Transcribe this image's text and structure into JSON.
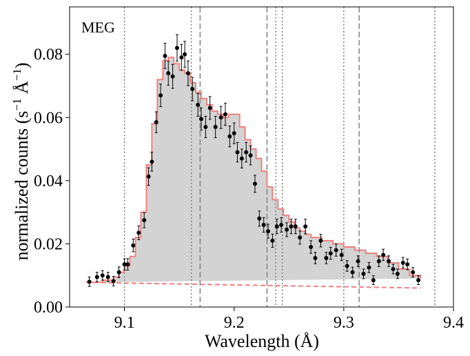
{
  "chart_data": {
    "type": "line",
    "title": "",
    "annotation": "MEG",
    "xlabel": "Wavelength (Å)",
    "ylabel_parts": {
      "pre": "normalized counts (s",
      "sup1": "−1",
      "mid": " Å",
      "sup2": "−1",
      "post": ")"
    },
    "xlim": [
      9.05,
      9.4
    ],
    "ylim": [
      0.0,
      0.095
    ],
    "xticks": [
      9.1,
      9.2,
      9.3,
      9.4
    ],
    "xtick_labels": [
      "9.1",
      "9.2",
      "9.3",
      "9.4"
    ],
    "yticks": [
      0.0,
      0.02,
      0.04,
      0.06,
      0.08
    ],
    "ytick_labels": [
      "0.00",
      "0.02",
      "0.04",
      "0.06",
      "0.08"
    ],
    "colors": {
      "model": "#f08080",
      "fill": "#d3d3d3",
      "data": "#000000",
      "reference": "#808080"
    },
    "continuum": {
      "x": [
        9.065,
        9.37
      ],
      "y": [
        0.0078,
        0.006
      ]
    },
    "dashed_lines_x": [
      9.169,
      9.23,
      9.314
    ],
    "dotted_lines_x": [
      9.1,
      9.161,
      9.238,
      9.244,
      9.3,
      9.383
    ],
    "model_step": {
      "edges": [
        9.065,
        9.08,
        9.09,
        9.095,
        9.1,
        9.105,
        9.11,
        9.115,
        9.12,
        9.125,
        9.13,
        9.135,
        9.14,
        9.145,
        9.15,
        9.155,
        9.16,
        9.165,
        9.17,
        9.175,
        9.18,
        9.185,
        9.19,
        9.195,
        9.2,
        9.205,
        9.21,
        9.215,
        9.22,
        9.225,
        9.23,
        9.235,
        9.24,
        9.245,
        9.25,
        9.255,
        9.26,
        9.265,
        9.27,
        9.28,
        9.29,
        9.3,
        9.31,
        9.32,
        9.33,
        9.34,
        9.35,
        9.36,
        9.37
      ],
      "values": [
        0.0078,
        0.0085,
        0.0095,
        0.011,
        0.013,
        0.016,
        0.022,
        0.03,
        0.045,
        0.058,
        0.072,
        0.078,
        0.079,
        0.077,
        0.075,
        0.074,
        0.071,
        0.068,
        0.066,
        0.064,
        0.062,
        0.061,
        0.06,
        0.061,
        0.061,
        0.057,
        0.053,
        0.05,
        0.047,
        0.043,
        0.038,
        0.034,
        0.031,
        0.029,
        0.027,
        0.025,
        0.024,
        0.023,
        0.022,
        0.021,
        0.02,
        0.019,
        0.018,
        0.017,
        0.016,
        0.014,
        0.012,
        0.01,
        0.009
      ]
    },
    "data_points": {
      "x": [
        9.068,
        9.075,
        9.08,
        9.085,
        9.09,
        9.095,
        9.1,
        9.103,
        9.108,
        9.113,
        9.118,
        9.122,
        9.125,
        9.129,
        9.133,
        9.137,
        9.14,
        9.144,
        9.148,
        9.152,
        9.155,
        9.158,
        9.162,
        9.167,
        9.17,
        9.174,
        9.178,
        9.183,
        9.188,
        9.192,
        9.196,
        9.2,
        9.203,
        9.207,
        9.211,
        9.215,
        9.219,
        9.223,
        9.227,
        9.231,
        9.235,
        9.239,
        9.243,
        9.248,
        9.252,
        9.256,
        9.26,
        9.265,
        9.27,
        9.274,
        9.279,
        9.284,
        9.288,
        9.293,
        9.298,
        9.303,
        9.308,
        9.313,
        9.318,
        9.323,
        9.327,
        9.332,
        9.336,
        9.341,
        9.345,
        9.349,
        9.354,
        9.358,
        9.363,
        9.368
      ],
      "y": [
        0.008,
        0.0095,
        0.01,
        0.0095,
        0.0082,
        0.011,
        0.0135,
        0.0135,
        0.0195,
        0.0235,
        0.0275,
        0.0413,
        0.046,
        0.0585,
        0.067,
        0.0795,
        0.074,
        0.073,
        0.082,
        0.079,
        0.08,
        0.074,
        0.069,
        0.064,
        0.0595,
        0.057,
        0.063,
        0.057,
        0.06,
        0.061,
        0.054,
        0.055,
        0.049,
        0.047,
        0.049,
        0.048,
        0.039,
        0.028,
        0.026,
        0.024,
        0.021,
        0.0255,
        0.026,
        0.0245,
        0.0255,
        0.0255,
        0.022,
        0.0255,
        0.019,
        0.0155,
        0.021,
        0.0155,
        0.017,
        0.018,
        0.0165,
        0.013,
        0.011,
        0.0145,
        0.0105,
        0.0125,
        0.0085,
        0.0145,
        0.0165,
        0.0145,
        0.012,
        0.0105,
        0.014,
        0.0135,
        0.011,
        0.0085
      ],
      "yerr": [
        0.0015,
        0.0015,
        0.0015,
        0.0015,
        0.0015,
        0.0017,
        0.0018,
        0.0018,
        0.002,
        0.0022,
        0.0024,
        0.0028,
        0.003,
        0.0033,
        0.0036,
        0.004,
        0.0038,
        0.0038,
        0.0042,
        0.0041,
        0.0041,
        0.0039,
        0.0037,
        0.0036,
        0.0035,
        0.0034,
        0.0036,
        0.0034,
        0.0035,
        0.0035,
        0.0033,
        0.0033,
        0.0031,
        0.003,
        0.0031,
        0.003,
        0.0027,
        0.0024,
        0.0023,
        0.0022,
        0.0021,
        0.0023,
        0.0023,
        0.0022,
        0.0023,
        0.0023,
        0.0021,
        0.0023,
        0.002,
        0.0018,
        0.002,
        0.0018,
        0.0019,
        0.0019,
        0.0018,
        0.0017,
        0.0016,
        0.0017,
        0.0015,
        0.0016,
        0.0014,
        0.0017,
        0.0018,
        0.0017,
        0.0015,
        0.0015,
        0.0017,
        0.0017,
        0.0015,
        0.0014
      ]
    }
  }
}
